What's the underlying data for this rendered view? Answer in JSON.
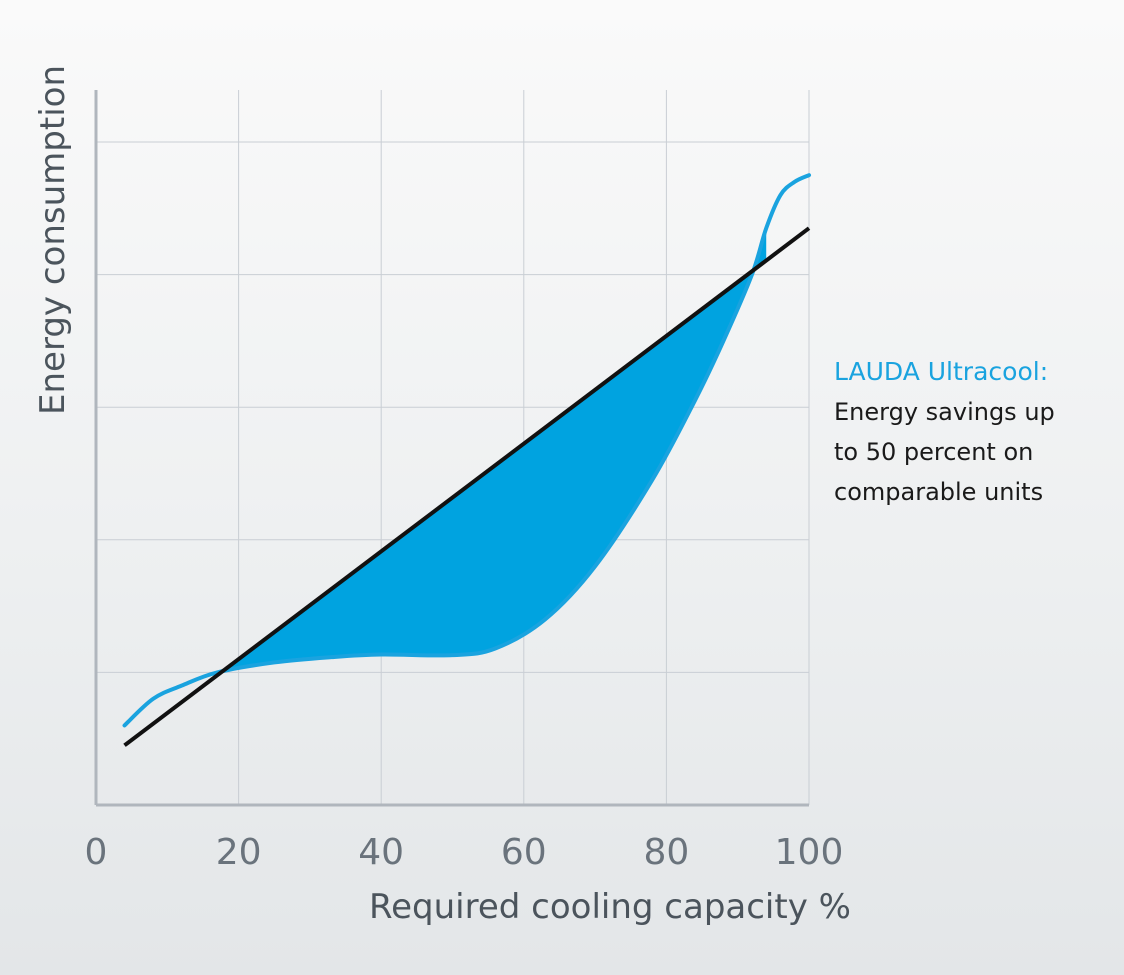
{
  "chart_data": {
    "type": "line",
    "xlabel": "Required cooling capacity %",
    "ylabel": "Energy consumption",
    "xlim": [
      0,
      100
    ],
    "ylim": [
      0,
      100
    ],
    "x_ticks": [
      "0",
      "20",
      "40",
      "60",
      "80",
      "100"
    ],
    "grid": true,
    "fill_between_series": true,
    "colors": {
      "fill": "#00a3e0",
      "ultracool_line": "#1aa3df",
      "conventional_line": "#111111",
      "grid": "#c9ced4",
      "axis": "#b0b6bd"
    },
    "series": [
      {
        "name": "",
        "role": "conventional",
        "x": [
          4,
          100
        ],
        "y": [
          9,
          87
        ]
      },
      {
        "name": "",
        "role": "ultracool",
        "x": [
          4,
          8,
          12,
          17,
          25,
          33,
          40,
          50,
          56,
          63,
          70,
          78,
          84,
          88,
          92,
          94,
          96,
          98,
          100
        ],
        "y": [
          12,
          16,
          18,
          20,
          21.5,
          22.3,
          22.7,
          22.6,
          23.6,
          28,
          36,
          49,
          61,
          70,
          80,
          87,
          92,
          94,
          95
        ]
      }
    ]
  },
  "callout": {
    "brand": "LAUDA Ultracool:",
    "text": "Energy savings up\nto 50 percent on\ncomparable units"
  }
}
